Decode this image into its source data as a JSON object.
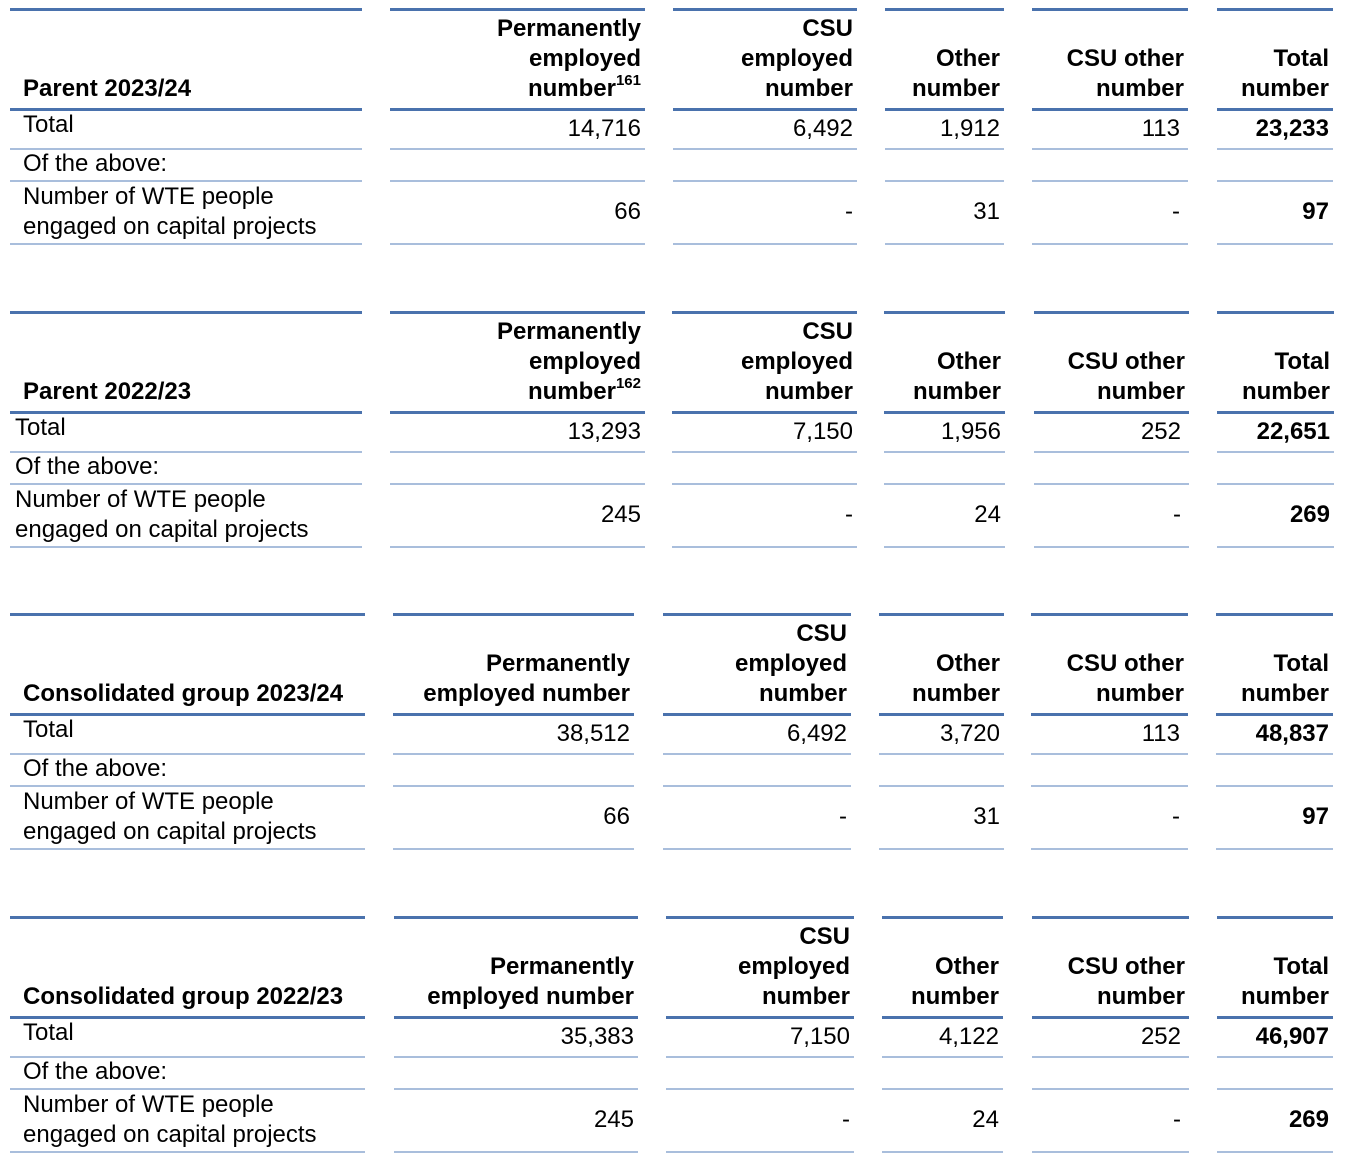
{
  "tables": [
    {
      "title": "Parent 2023/24",
      "headers": {
        "permanent": "Permanently employed number",
        "permanent_note": "161",
        "csu": "CSU employed number",
        "other": "Other number",
        "csu_other": "CSU other number",
        "total": "Total number"
      },
      "rows": [
        {
          "label": "Total",
          "permanent": "14,716",
          "csu": "6,492",
          "other": "1,912",
          "csu_other": "113",
          "total": "23,233"
        },
        {
          "label": "Of the above:"
        },
        {
          "label": "Number of WTE people engaged on capital projects",
          "permanent": "66",
          "csu": "-",
          "other": "31",
          "csu_other": "-",
          "total": "97"
        }
      ]
    },
    {
      "title": "Parent 2022/23",
      "headers": {
        "permanent": "Permanently employed number",
        "permanent_note": "162",
        "csu": "CSU employed number",
        "other": "Other number",
        "csu_other": "CSU other number",
        "total": "Total number"
      },
      "rows": [
        {
          "label": "Total",
          "permanent": "13,293",
          "csu": "7,150",
          "other": "1,956",
          "csu_other": "252",
          "total": "22,651"
        },
        {
          "label": "Of the above:"
        },
        {
          "label": "Number of WTE people engaged on capital projects",
          "permanent": "245",
          "csu": "-",
          "other": "24",
          "csu_other": "-",
          "total": "269"
        }
      ]
    },
    {
      "title": "Consolidated group 2023/24",
      "headers": {
        "permanent": "Permanently employed number",
        "permanent_note": "",
        "csu": "CSU employed number",
        "other": "Other number",
        "csu_other": "CSU other number",
        "total": "Total number"
      },
      "rows": [
        {
          "label": "Total",
          "permanent": "38,512",
          "csu": "6,492",
          "other": "3,720",
          "csu_other": "113",
          "total": "48,837"
        },
        {
          "label": "Of the above:"
        },
        {
          "label": "Number of WTE people engaged on capital projects",
          "permanent": "66",
          "csu": "-",
          "other": "31",
          "csu_other": "-",
          "total": "97"
        }
      ]
    },
    {
      "title": "Consolidated group 2022/23",
      "headers": {
        "permanent": "Permanently employed number",
        "permanent_note": "",
        "csu": "CSU employed number",
        "other": "Other number",
        "csu_other": "CSU other number",
        "total": "Total number"
      },
      "rows": [
        {
          "label": "Total",
          "permanent": "35,383",
          "csu": "7,150",
          "other": "4,122",
          "csu_other": "252",
          "total": "46,907"
        },
        {
          "label": "Of the above:"
        },
        {
          "label": "Number of WTE people engaged on capital projects",
          "permanent": "245",
          "csu": "-",
          "other": "24",
          "csu_other": "-",
          "total": "269"
        }
      ]
    }
  ]
}
